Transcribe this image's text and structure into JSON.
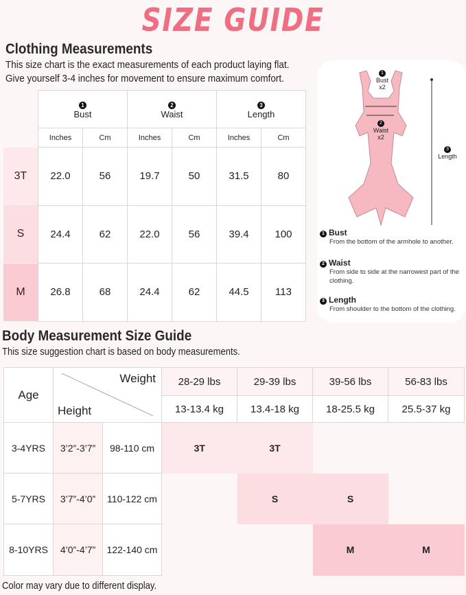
{
  "title": "SIZE GUIDE",
  "clothing": {
    "heading": "Clothing Measurements",
    "line1": "This size chart is the exact measurements of each product laying flat.",
    "line2": "Give yourself 3-4 inches for movement to ensure maximum comfort.",
    "columns": [
      {
        "num": "1",
        "label": "Bust"
      },
      {
        "num": "2",
        "label": "Waist"
      },
      {
        "num": "3",
        "label": "Length"
      }
    ],
    "units": [
      "Inches",
      "Cm",
      "Inches",
      "Cm",
      "Inches",
      "Cm"
    ],
    "rows": [
      {
        "size": "3T",
        "values": [
          "22.0",
          "56",
          "19.7",
          "50",
          "31.5",
          "80"
        ]
      },
      {
        "size": "S",
        "values": [
          "24.4",
          "62",
          "22.0",
          "56",
          "39.4",
          "100"
        ]
      },
      {
        "size": "M",
        "values": [
          "26.8",
          "68",
          "24.4",
          "62",
          "44.5",
          "113"
        ]
      }
    ]
  },
  "diagram": {
    "bust_label": "Bust",
    "bust_mult": "x2",
    "waist_label": "Waist",
    "waist_mult": "x2",
    "length_label": "Length",
    "legend": [
      {
        "num": "1",
        "title": "Bust",
        "desc": "From the bottom of the armhole to another."
      },
      {
        "num": "2",
        "title": "Waist",
        "desc": "From side to side at the narrowest part of the clothing."
      },
      {
        "num": "3",
        "title": "Length",
        "desc": "From shoulder to the bottom of the clothing."
      }
    ]
  },
  "body": {
    "heading": "Body Measurement Size Guide",
    "subtitle": "This size suggestion chart is based on body measurements.",
    "age_label": "Age",
    "weight_label": "Weight",
    "height_label": "Height",
    "weights_lbs": [
      "28-29 lbs",
      "29-39 lbs",
      "39-56 lbs",
      "56-83 lbs"
    ],
    "weights_kg": [
      "13-13.4 kg",
      "13.4-18 kg",
      "18-25.5 kg",
      "25.5-37 kg"
    ],
    "rows": [
      {
        "age": "3-4YRS",
        "ft": "3’2”-3’7”",
        "cm": "98-110 cm",
        "sizes": [
          "3T",
          "3T",
          "",
          ""
        ]
      },
      {
        "age": "5-7YRS",
        "ft": "3’7”-4’0”",
        "cm": "110-122 cm",
        "sizes": [
          "",
          "S",
          "S",
          ""
        ]
      },
      {
        "age": "8-10YRS",
        "ft": "4’0”-4’7”",
        "cm": "122-140 cm",
        "sizes": [
          "",
          "",
          "M",
          "M"
        ]
      }
    ]
  },
  "footer": "Color may vary due to different display.",
  "colors": {
    "title": "#ee6f82",
    "size_3t": "#fde9eb",
    "size_s": "#fbdde2",
    "size_m": "#f9cbd3"
  }
}
